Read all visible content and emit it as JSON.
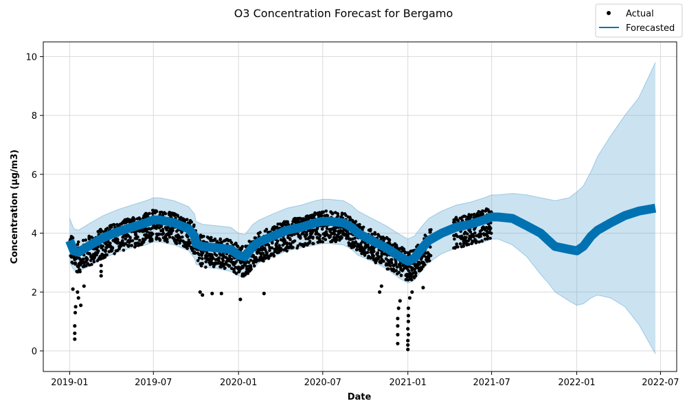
{
  "chart_data": {
    "type": "line",
    "title": "O3 Concentration Forecast for Bergamo",
    "xlabel": "Date",
    "ylabel": "Concentration (µg/m3)",
    "xlim": [
      "2018-11-05",
      "2022-08-05"
    ],
    "ylim": [
      -0.7,
      10.5
    ],
    "x_ticks": [
      "2019-01",
      "2019-07",
      "2020-01",
      "2020-07",
      "2021-01",
      "2021-07",
      "2022-01",
      "2022-07"
    ],
    "y_ticks": [
      0,
      2,
      4,
      6,
      8,
      10
    ],
    "grid": true,
    "legend": {
      "placement": "top-right",
      "entries": [
        {
          "label": "Actual",
          "marker": "dot",
          "color": "#000000"
        },
        {
          "label": "Forecasted",
          "marker": "line",
          "color": "#0072B2"
        }
      ]
    },
    "colors": {
      "actual": "#000000",
      "forecast": "#0072B2",
      "interval": "#6baed6",
      "grid": "#d9d9d9"
    },
    "series": [
      {
        "name": "Forecasted",
        "x": [
          "2019-01-01",
          "2019-01-10",
          "2019-01-20",
          "2019-02-15",
          "2019-03-15",
          "2019-04-15",
          "2019-05-15",
          "2019-06-15",
          "2019-07-01",
          "2019-07-15",
          "2019-08-15",
          "2019-09-15",
          "2019-09-28",
          "2019-10-01",
          "2019-10-15",
          "2019-11-15",
          "2019-12-15",
          "2020-01-01",
          "2020-01-15",
          "2020-02-01",
          "2020-02-15",
          "2020-03-15",
          "2020-04-15",
          "2020-05-15",
          "2020-06-15",
          "2020-07-01",
          "2020-07-15",
          "2020-08-15",
          "2020-09-01",
          "2020-09-15",
          "2020-10-15",
          "2020-11-15",
          "2020-12-15",
          "2021-01-01",
          "2021-01-15",
          "2021-02-01",
          "2021-02-15",
          "2021-03-15",
          "2021-04-15",
          "2021-05-15",
          "2021-06-15",
          "2021-07-01",
          "2021-07-15",
          "2021-08-15",
          "2021-09-15",
          "2021-10-15",
          "2021-11-01",
          "2021-11-15",
          "2021-12-15",
          "2022-01-01",
          "2022-01-15",
          "2022-02-01",
          "2022-02-15",
          "2022-03-15",
          "2022-04-15",
          "2022-05-15",
          "2022-06-20"
        ],
        "y": [
          3.75,
          3.4,
          3.35,
          3.6,
          3.85,
          4.05,
          4.2,
          4.35,
          4.45,
          4.45,
          4.35,
          4.15,
          3.9,
          3.65,
          3.55,
          3.5,
          3.45,
          3.25,
          3.2,
          3.55,
          3.7,
          3.9,
          4.1,
          4.2,
          4.35,
          4.4,
          4.4,
          4.35,
          4.2,
          4.0,
          3.75,
          3.5,
          3.2,
          3.05,
          3.15,
          3.5,
          3.75,
          4.0,
          4.2,
          4.3,
          4.45,
          4.55,
          4.55,
          4.5,
          4.25,
          4.0,
          3.75,
          3.55,
          3.45,
          3.4,
          3.55,
          3.9,
          4.1,
          4.35,
          4.6,
          4.75,
          4.85
        ],
        "lower": [
          3.0,
          2.75,
          2.7,
          2.9,
          3.15,
          3.35,
          3.5,
          3.6,
          3.7,
          3.7,
          3.6,
          3.4,
          3.15,
          2.95,
          2.85,
          2.8,
          2.7,
          2.55,
          2.5,
          2.8,
          3.0,
          3.2,
          3.4,
          3.5,
          3.6,
          3.65,
          3.65,
          3.6,
          3.45,
          3.25,
          3.05,
          2.8,
          2.45,
          2.3,
          2.4,
          2.75,
          3.0,
          3.3,
          3.5,
          3.6,
          3.7,
          3.8,
          3.8,
          3.6,
          3.2,
          2.6,
          2.3,
          2.0,
          1.7,
          1.55,
          1.6,
          1.8,
          1.9,
          1.8,
          1.5,
          0.9,
          -0.1
        ],
        "upper": [
          4.5,
          4.15,
          4.1,
          4.35,
          4.6,
          4.8,
          4.95,
          5.1,
          5.2,
          5.2,
          5.1,
          4.9,
          4.65,
          4.4,
          4.3,
          4.25,
          4.2,
          4.0,
          3.95,
          4.3,
          4.45,
          4.65,
          4.85,
          4.95,
          5.1,
          5.15,
          5.15,
          5.1,
          4.95,
          4.75,
          4.5,
          4.25,
          3.95,
          3.8,
          3.9,
          4.25,
          4.5,
          4.75,
          4.95,
          5.05,
          5.2,
          5.3,
          5.3,
          5.35,
          5.3,
          5.2,
          5.15,
          5.1,
          5.2,
          5.4,
          5.6,
          6.1,
          6.6,
          7.3,
          8.0,
          8.6,
          9.8
        ]
      },
      {
        "name": "Actual",
        "x_range": [
          "2019-01-01",
          "2021-06-30"
        ],
        "gap": [
          "2021-02-20",
          "2021-04-10"
        ],
        "spread_below": 0.7,
        "spread_above": 0.35,
        "outliers": [
          [
            "2019-01-12",
            0.4
          ],
          [
            "2019-01-12",
            0.6
          ],
          [
            "2019-01-12",
            0.85
          ],
          [
            "2019-01-13",
            1.3
          ],
          [
            "2019-01-14",
            1.5
          ],
          [
            "2019-01-08",
            2.1
          ],
          [
            "2019-01-20",
            1.8
          ],
          [
            "2019-01-25",
            1.55
          ],
          [
            "2019-01-18",
            2.0
          ],
          [
            "2019-02-01",
            2.2
          ],
          [
            "2019-03-10",
            2.55
          ],
          [
            "2019-03-10",
            2.7
          ],
          [
            "2019-03-10",
            2.9
          ],
          [
            "2019-10-10",
            2.0
          ],
          [
            "2019-10-15",
            1.9
          ],
          [
            "2019-11-05",
            1.95
          ],
          [
            "2019-11-25",
            1.95
          ],
          [
            "2020-01-05",
            1.75
          ],
          [
            "2020-02-25",
            1.95
          ],
          [
            "2021-01-01",
            0.05
          ],
          [
            "2021-01-01",
            0.2
          ],
          [
            "2021-01-01",
            0.35
          ],
          [
            "2021-01-02",
            0.55
          ],
          [
            "2021-01-01",
            0.75
          ],
          [
            "2021-01-02",
            1.0
          ],
          [
            "2021-01-02",
            1.2
          ],
          [
            "2021-01-02",
            1.45
          ],
          [
            "2020-12-10",
            0.25
          ],
          [
            "2020-12-10",
            0.55
          ],
          [
            "2020-12-10",
            0.85
          ],
          [
            "2020-12-10",
            1.1
          ],
          [
            "2020-12-12",
            1.45
          ],
          [
            "2020-12-15",
            1.7
          ],
          [
            "2021-01-05",
            1.8
          ],
          [
            "2021-01-10",
            2.0
          ],
          [
            "2021-02-03",
            2.15
          ],
          [
            "2020-11-01",
            2.0
          ],
          [
            "2020-11-05",
            2.2
          ]
        ]
      }
    ]
  }
}
